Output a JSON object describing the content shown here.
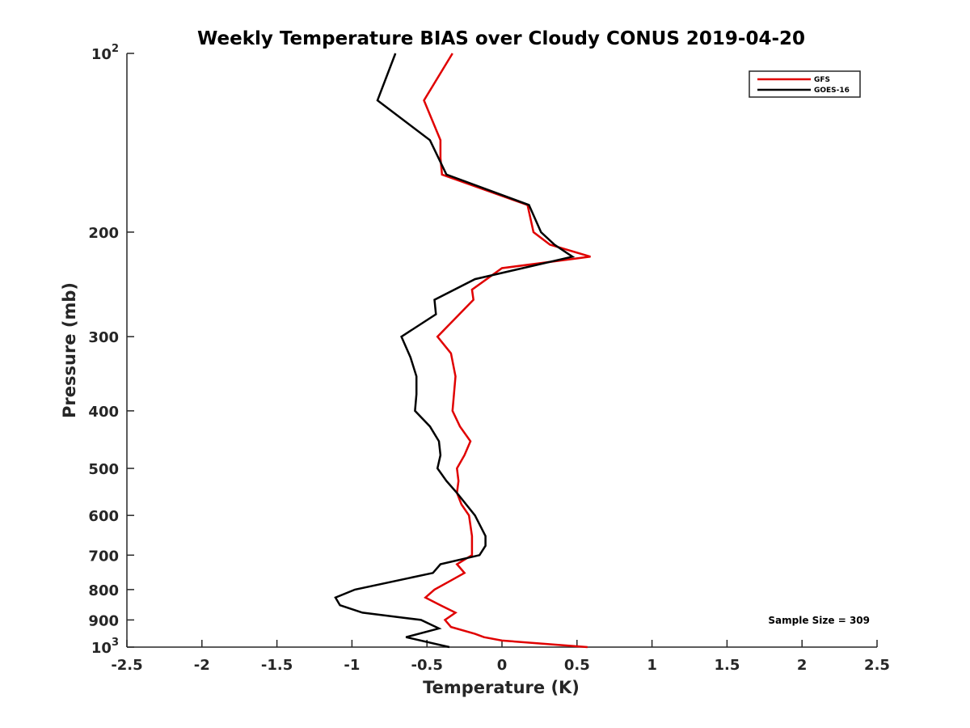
{
  "chart_data": {
    "type": "line",
    "title": "Weekly Temperature BIAS over Cloudy CONUS 2019-04-20",
    "xlabel": "Temperature (K)",
    "ylabel": "Pressure (mb)",
    "xlim": [
      -2.5,
      2.5
    ],
    "ylim": [
      1000,
      100
    ],
    "yscale": "log",
    "y_reversed": true,
    "x_ticks": [
      "-2.5",
      "-2",
      "-1.5",
      "-1",
      "-0.5",
      "0",
      "0.5",
      "1",
      "1.5",
      "2",
      "2.5"
    ],
    "y_ticks": [
      {
        "value": 100,
        "base": "10",
        "exp": "2"
      },
      {
        "value": 200,
        "label": "200"
      },
      {
        "value": 300,
        "label": "300"
      },
      {
        "value": 400,
        "label": "400"
      },
      {
        "value": 500,
        "label": "500"
      },
      {
        "value": 600,
        "label": "600"
      },
      {
        "value": 700,
        "label": "700"
      },
      {
        "value": 800,
        "label": "800"
      },
      {
        "value": 900,
        "label": "900"
      },
      {
        "value": 1000,
        "base": "10",
        "exp": "3"
      }
    ],
    "grid": false,
    "legend_position": "top-right",
    "annotation": "Sample Size = 309",
    "series": [
      {
        "name": "GFS",
        "color": "#e00000",
        "points": [
          [
            -0.33,
            100
          ],
          [
            -0.52,
            120
          ],
          [
            -0.41,
            140
          ],
          [
            -0.41,
            150
          ],
          [
            -0.4,
            160
          ],
          [
            0.17,
            180
          ],
          [
            0.21,
            200
          ],
          [
            0.32,
            210
          ],
          [
            0.59,
            220
          ],
          [
            0.0,
            230
          ],
          [
            -0.2,
            250
          ],
          [
            -0.19,
            260
          ],
          [
            -0.43,
            300
          ],
          [
            -0.34,
            320
          ],
          [
            -0.31,
            350
          ],
          [
            -0.32,
            375
          ],
          [
            -0.33,
            400
          ],
          [
            -0.28,
            425
          ],
          [
            -0.21,
            450
          ],
          [
            -0.25,
            475
          ],
          [
            -0.3,
            500
          ],
          [
            -0.29,
            525
          ],
          [
            -0.3,
            550
          ],
          [
            -0.27,
            575
          ],
          [
            -0.22,
            600
          ],
          [
            -0.2,
            650
          ],
          [
            -0.2,
            700
          ],
          [
            -0.3,
            725
          ],
          [
            -0.25,
            750
          ],
          [
            -0.35,
            775
          ],
          [
            -0.45,
            800
          ],
          [
            -0.51,
            825
          ],
          [
            -0.41,
            850
          ],
          [
            -0.31,
            875
          ],
          [
            -0.38,
            900
          ],
          [
            -0.34,
            925
          ],
          [
            -0.18,
            950
          ],
          [
            -0.12,
            962
          ],
          [
            0.0,
            975
          ],
          [
            0.57,
            1000
          ]
        ]
      },
      {
        "name": "GOES-16",
        "color": "#000000",
        "points": [
          [
            -0.71,
            100
          ],
          [
            -0.83,
            120
          ],
          [
            -0.48,
            140
          ],
          [
            -0.37,
            160
          ],
          [
            0.18,
            180
          ],
          [
            0.26,
            200
          ],
          [
            0.35,
            210
          ],
          [
            0.47,
            220
          ],
          [
            -0.18,
            240
          ],
          [
            -0.45,
            260
          ],
          [
            -0.44,
            275
          ],
          [
            -0.67,
            300
          ],
          [
            -0.61,
            325
          ],
          [
            -0.57,
            350
          ],
          [
            -0.57,
            375
          ],
          [
            -0.58,
            400
          ],
          [
            -0.48,
            425
          ],
          [
            -0.42,
            450
          ],
          [
            -0.41,
            475
          ],
          [
            -0.43,
            500
          ],
          [
            -0.37,
            525
          ],
          [
            -0.3,
            550
          ],
          [
            -0.18,
            600
          ],
          [
            -0.11,
            650
          ],
          [
            -0.11,
            675
          ],
          [
            -0.15,
            700
          ],
          [
            -0.41,
            725
          ],
          [
            -0.46,
            750
          ],
          [
            -0.98,
            800
          ],
          [
            -1.11,
            825
          ],
          [
            -1.08,
            850
          ],
          [
            -0.93,
            875
          ],
          [
            -0.54,
            900
          ],
          [
            -0.42,
            930
          ],
          [
            -0.64,
            962
          ],
          [
            -0.35,
            1000
          ]
        ]
      }
    ]
  }
}
